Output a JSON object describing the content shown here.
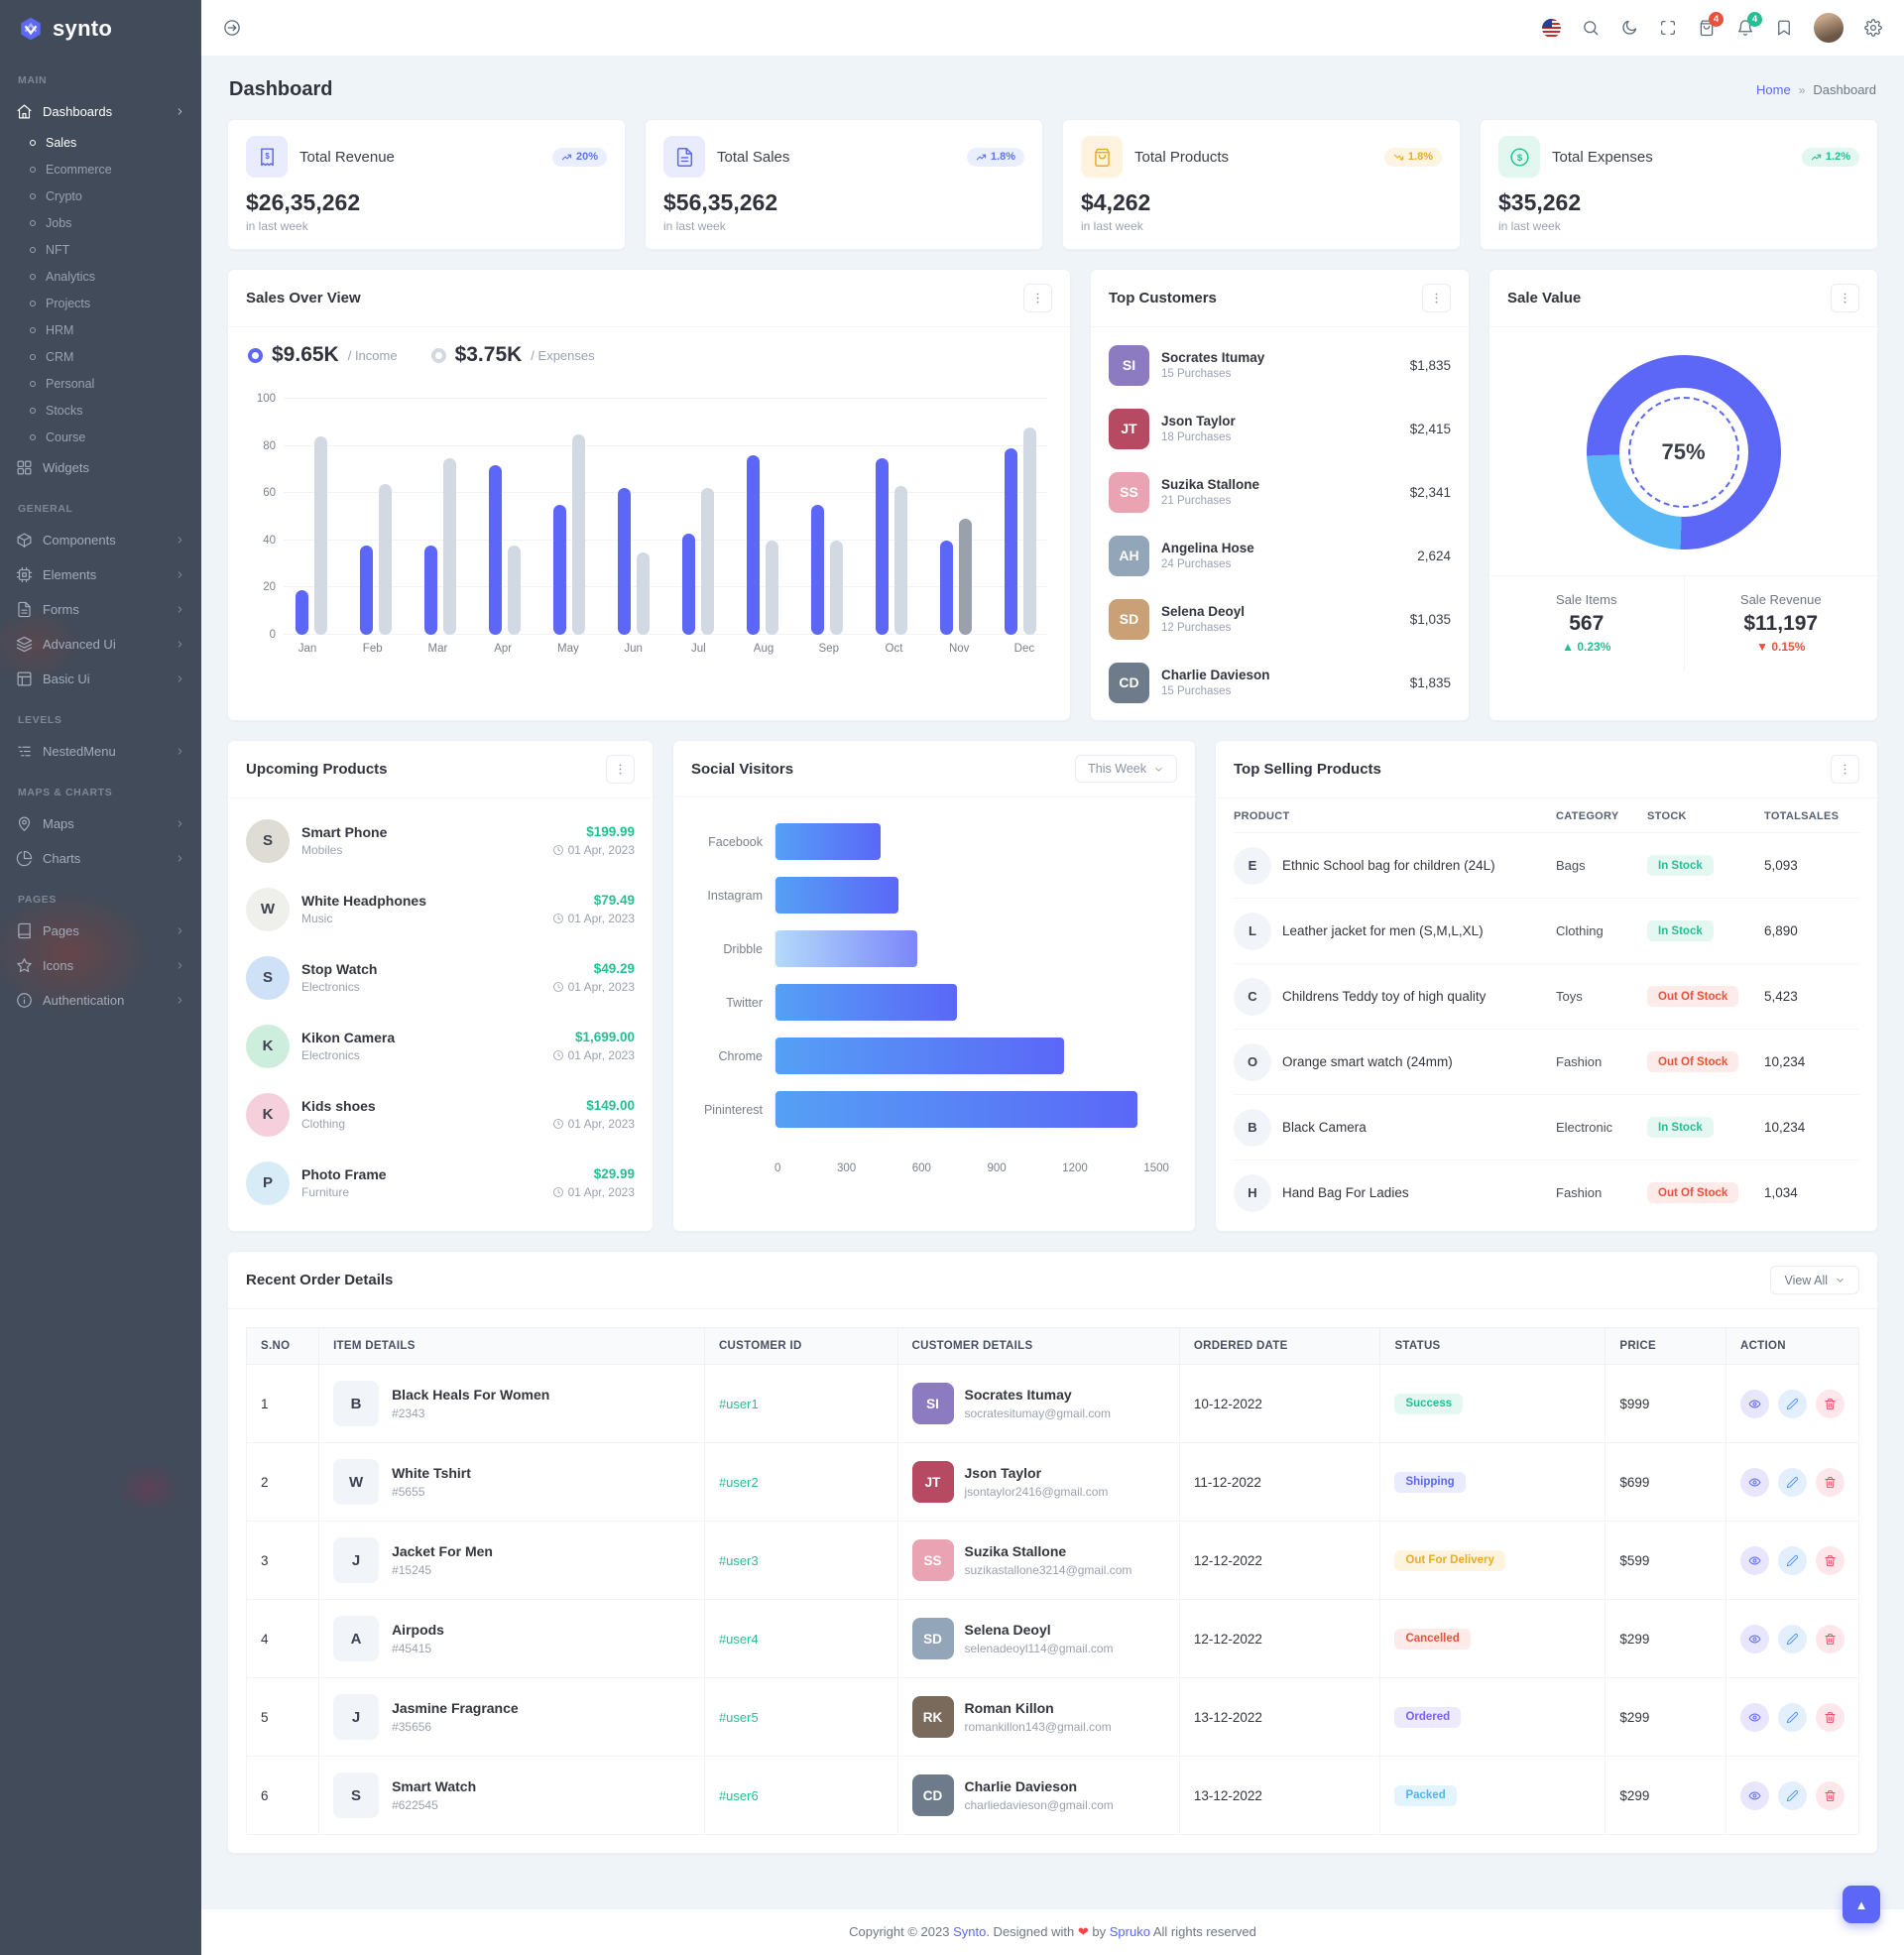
{
  "app": {
    "brand": "synto"
  },
  "colors": {
    "primary": "#5c67f7",
    "success": "#26bf94",
    "danger": "#e6533c",
    "warning": "#f5b849",
    "info": "#49b6f5",
    "purple": "#8e54e9",
    "gray_bar": "#d3d9e2",
    "sidebar_bg": "#414b59"
  },
  "header": {
    "cart_badge": "4",
    "notification_badge": "4"
  },
  "page": {
    "title": "Dashboard",
    "breadcrumb_home": "Home",
    "breadcrumb_separator": "»",
    "breadcrumb_current": "Dashboard"
  },
  "sidebar": {
    "sections": [
      {
        "label": "MAIN",
        "items": [
          {
            "label": "Dashboards",
            "icon": "home",
            "name": "dashboards",
            "active": true,
            "chevron": true,
            "children": [
              {
                "label": "Sales",
                "active": true
              },
              {
                "label": "Ecommerce"
              },
              {
                "label": "Crypto"
              },
              {
                "label": "Jobs"
              },
              {
                "label": "NFT"
              },
              {
                "label": "Analytics"
              },
              {
                "label": "Projects"
              },
              {
                "label": "HRM"
              },
              {
                "label": "CRM"
              },
              {
                "label": "Personal"
              },
              {
                "label": "Stocks"
              },
              {
                "label": "Course"
              }
            ]
          },
          {
            "label": "Widgets",
            "icon": "grid",
            "name": "widgets"
          }
        ]
      },
      {
        "label": "GENERAL",
        "items": [
          {
            "label": "Components",
            "icon": "box",
            "name": "components",
            "chevron": true
          },
          {
            "label": "Elements",
            "icon": "cpu",
            "name": "elements",
            "chevron": true
          },
          {
            "label": "Forms",
            "icon": "file",
            "name": "forms",
            "chevron": true
          },
          {
            "label": "Advanced Ui",
            "icon": "layers",
            "name": "advanced-ui",
            "chevron": true
          },
          {
            "label": "Basic Ui",
            "icon": "layout",
            "name": "basic-ui",
            "chevron": true
          }
        ]
      },
      {
        "label": "LEVELS",
        "items": [
          {
            "label": "NestedMenu",
            "icon": "nested",
            "name": "nested-menu",
            "chevron": true
          }
        ]
      },
      {
        "label": "MAPS & CHARTS",
        "items": [
          {
            "label": "Maps",
            "icon": "pin",
            "name": "maps",
            "chevron": true
          },
          {
            "label": "Charts",
            "icon": "pie",
            "name": "charts",
            "chevron": true
          }
        ]
      },
      {
        "label": "PAGES",
        "items": [
          {
            "label": "Pages",
            "icon": "book",
            "name": "pages",
            "chevron": true
          },
          {
            "label": "Icons",
            "icon": "star",
            "name": "icons",
            "chevron": true
          },
          {
            "label": "Authentication",
            "icon": "info",
            "name": "authentication",
            "chevron": true
          }
        ]
      }
    ]
  },
  "stat_cards": [
    {
      "title": "Total Revenue",
      "value": "$26,35,262",
      "sub": "in last week",
      "badge": "20%",
      "trend": "up",
      "tone": "primary",
      "icon": "receipt",
      "icon_name": "revenue-icon"
    },
    {
      "title": "Total Sales",
      "value": "$56,35,262",
      "sub": "in last week",
      "badge": "1.8%",
      "trend": "up",
      "tone": "primary",
      "icon": "invoice",
      "icon_name": "sales-icon"
    },
    {
      "title": "Total Products",
      "value": "$4,262",
      "sub": "in last week",
      "badge": "1.8%",
      "trend": "down",
      "tone": "warning",
      "icon": "bag",
      "icon_name": "products-icon"
    },
    {
      "title": "Total Expenses",
      "value": "$35,262",
      "sub": "in last week",
      "badge": "1.2%",
      "trend": "up",
      "tone": "success",
      "icon": "dollar",
      "icon_name": "expenses-icon"
    }
  ],
  "chart_data": [
    {
      "id": "sales_overview",
      "type": "bar",
      "title": "Sales Over View",
      "legend": [
        {
          "value": "$9.65K",
          "label": "/ Income",
          "color": "#5c67f7"
        },
        {
          "value": "$3.75K",
          "label": "/ Expenses",
          "color": "#d3d9e2"
        }
      ],
      "categories": [
        "Jan",
        "Feb",
        "Mar",
        "Apr",
        "May",
        "Jun",
        "Jul",
        "Aug",
        "Sep",
        "Oct",
        "Nov",
        "Dec"
      ],
      "series": [
        {
          "name": "Income",
          "color": "#5c67f7",
          "values": [
            19,
            38,
            38,
            72,
            55,
            62,
            43,
            76,
            55,
            75,
            40,
            79
          ]
        },
        {
          "name": "Expenses",
          "color": "#d3d9e2",
          "values": [
            84,
            64,
            75,
            38,
            85,
            35,
            62,
            40,
            40,
            63,
            49,
            88
          ],
          "point_colors": [
            null,
            null,
            null,
            null,
            null,
            null,
            null,
            null,
            null,
            null,
            "#9aa1ac",
            null
          ]
        }
      ],
      "ylim": [
        0,
        100
      ],
      "yticks": [
        100,
        80,
        60,
        40,
        20,
        0
      ],
      "grid": true,
      "legend_position": "top"
    },
    {
      "id": "social_visitors",
      "type": "bar-horizontal",
      "title": "Social Visitors",
      "categories": [
        "Facebook",
        "Instagram",
        "Dribble",
        "Twitter",
        "Chrome",
        "Pininterest"
      ],
      "values": [
        400,
        470,
        540,
        690,
        1100,
        1380
      ],
      "xticks": [
        0,
        300,
        600,
        900,
        1200,
        1500
      ],
      "xlim": [
        0,
        1500
      ],
      "light_variant_index": 2
    },
    {
      "id": "sale_value",
      "type": "donut",
      "title": "Sale Value",
      "center_label": "75%",
      "values": [
        75,
        25
      ],
      "segments": [
        {
          "color": "#5c67f7",
          "from_deg": 0,
          "to_deg": 182
        },
        {
          "color": "#58b8f6",
          "from_deg": 182,
          "to_deg": 268
        },
        {
          "color": "#5c67f7",
          "from_deg": 268,
          "to_deg": 360
        }
      ]
    }
  ],
  "top_customers": {
    "title": "Top Customers",
    "items": [
      {
        "name": "Socrates Itumay",
        "purchases": "15 Purchases",
        "amount": "$1,835",
        "color": "#8d7bc1"
      },
      {
        "name": "Json Taylor",
        "purchases": "18 Purchases",
        "amount": "$2,415",
        "color": "#b64a62"
      },
      {
        "name": "Suzika Stallone",
        "purchases": "21 Purchases",
        "amount": "$2,341",
        "color": "#e9a3b2"
      },
      {
        "name": "Angelina Hose",
        "purchases": "24 Purchases",
        "amount": "2,624",
        "color": "#93a5b8"
      },
      {
        "name": "Selena Deoyl",
        "purchases": "12 Purchases",
        "amount": "$1,035",
        "color": "#caa177"
      },
      {
        "name": "Charlie Davieson",
        "purchases": "15 Purchases",
        "amount": "$1,835",
        "color": "#6e7b8a"
      }
    ]
  },
  "sale_value_card": {
    "title": "Sale Value",
    "items_label": "Sale Items",
    "items_value": "567",
    "items_delta": "0.23%",
    "items_trend": "up",
    "revenue_label": "Sale Revenue",
    "revenue_value": "$11,197",
    "revenue_delta": "0.15%",
    "revenue_trend": "down",
    "caret_up": "▲",
    "caret_down": "▼"
  },
  "upcoming_products": {
    "title": "Upcoming Products",
    "items": [
      {
        "name": "Smart Phone",
        "category": "Mobiles",
        "price": "$199.99",
        "date": "01 Apr, 2023",
        "tint": "#dfdcd5"
      },
      {
        "name": "White Headphones",
        "category": "Music",
        "price": "$79.49",
        "date": "01 Apr, 2023",
        "tint": "#efefec"
      },
      {
        "name": "Stop Watch",
        "category": "Electronics",
        "price": "$49.29",
        "date": "01 Apr, 2023",
        "tint": "#cfe1f7"
      },
      {
        "name": "Kikon Camera",
        "category": "Electronics",
        "price": "$1,699.00",
        "date": "01 Apr, 2023",
        "tint": "#cdeedd"
      },
      {
        "name": "Kids shoes",
        "category": "Clothing",
        "price": "$149.00",
        "date": "01 Apr, 2023",
        "tint": "#f6cfdd"
      },
      {
        "name": "Photo Frame",
        "category": "Furniture",
        "price": "$29.99",
        "date": "01 Apr, 2023",
        "tint": "#d8ecf8"
      }
    ]
  },
  "social_card": {
    "filter_label": "This Week"
  },
  "top_selling": {
    "title": "Top Selling Products",
    "columns": [
      "PRODUCT",
      "CATEGORY",
      "STOCK",
      "TOTALSALES"
    ],
    "rows": [
      {
        "product": "Ethnic School bag for children (24L)",
        "category": "Bags",
        "stock": "In Stock",
        "stock_tone": "t-success",
        "sales": "5,093"
      },
      {
        "product": "Leather jacket for men (S,M,L,XL)",
        "category": "Clothing",
        "stock": "In Stock",
        "stock_tone": "t-success",
        "sales": "6,890"
      },
      {
        "product": "Childrens Teddy toy of high quality",
        "category": "Toys",
        "stock": "Out Of Stock",
        "stock_tone": "t-danger",
        "sales": "5,423"
      },
      {
        "product": "Orange smart watch (24mm)",
        "category": "Fashion",
        "stock": "Out Of Stock",
        "stock_tone": "t-danger",
        "sales": "10,234"
      },
      {
        "product": "Black Camera",
        "category": "Electronic",
        "stock": "In Stock",
        "stock_tone": "t-success",
        "sales": "10,234"
      },
      {
        "product": "Hand Bag For Ladies",
        "category": "Fashion",
        "stock": "Out Of Stock",
        "stock_tone": "t-danger",
        "sales": "1,034"
      }
    ]
  },
  "recent_orders": {
    "title": "Recent Order Details",
    "view_all": "View All",
    "columns": [
      "S.NO",
      "ITEM DETAILS",
      "CUSTOMER ID",
      "CUSTOMER DETAILS",
      "ORDERED DATE",
      "STATUS",
      "PRICE",
      "ACTION"
    ],
    "rows": [
      {
        "sno": "1",
        "item": "Black Heals For Women",
        "item_id": "#2343",
        "customer_id": "#user1",
        "customer": "Socrates Itumay",
        "email": "socratesitumay@gmail.com",
        "date": "10-12-2022",
        "status": "Success",
        "status_tone": "t-success",
        "price": "$999",
        "avatar_color": "#8d7bc1"
      },
      {
        "sno": "2",
        "item": "White Tshirt",
        "item_id": "#5655",
        "customer_id": "#user2",
        "customer": "Json Taylor",
        "email": "jsontaylor2416@gmail.com",
        "date": "11-12-2022",
        "status": "Shipping",
        "status_tone": "t-primary",
        "price": "$699",
        "avatar_color": "#b64a62"
      },
      {
        "sno": "3",
        "item": "Jacket For Men",
        "item_id": "#15245",
        "customer_id": "#user3",
        "customer": "Suzika Stallone",
        "email": "suzikastallone3214@gmail.com",
        "date": "12-12-2022",
        "status": "Out For Delivery",
        "status_tone": "t-warning",
        "price": "$599",
        "avatar_color": "#e9a3b2"
      },
      {
        "sno": "4",
        "item": "Airpods",
        "item_id": "#45415",
        "customer_id": "#user4",
        "customer": "Selena Deoyl",
        "email": "selenadeoyl114@gmail.com",
        "date": "12-12-2022",
        "status": "Cancelled",
        "status_tone": "t-danger",
        "price": "$299",
        "avatar_color": "#93a5b8"
      },
      {
        "sno": "5",
        "item": "Jasmine Fragrance",
        "item_id": "#35656",
        "customer_id": "#user5",
        "customer": "Roman Killon",
        "email": "romankillon143@gmail.com",
        "date": "13-12-2022",
        "status": "Ordered",
        "status_tone": "t-purple",
        "price": "$299",
        "avatar_color": "#7a6a5c"
      },
      {
        "sno": "6",
        "item": "Smart Watch",
        "item_id": "#622545",
        "customer_id": "#user6",
        "customer": "Charlie Davieson",
        "email": "charliedavieson@gmail.com",
        "date": "13-12-2022",
        "status": "Packed",
        "status_tone": "t-info",
        "price": "$299",
        "avatar_color": "#6e7b8a"
      }
    ]
  },
  "footer": {
    "prefix": "Copyright © 2023",
    "brand": "Synto",
    "mid1": ". Designed with",
    "heart": "❤",
    "mid2": "by",
    "designer": "Spruko",
    "suffix": "All rights reserved"
  },
  "scroll_top": "▲"
}
